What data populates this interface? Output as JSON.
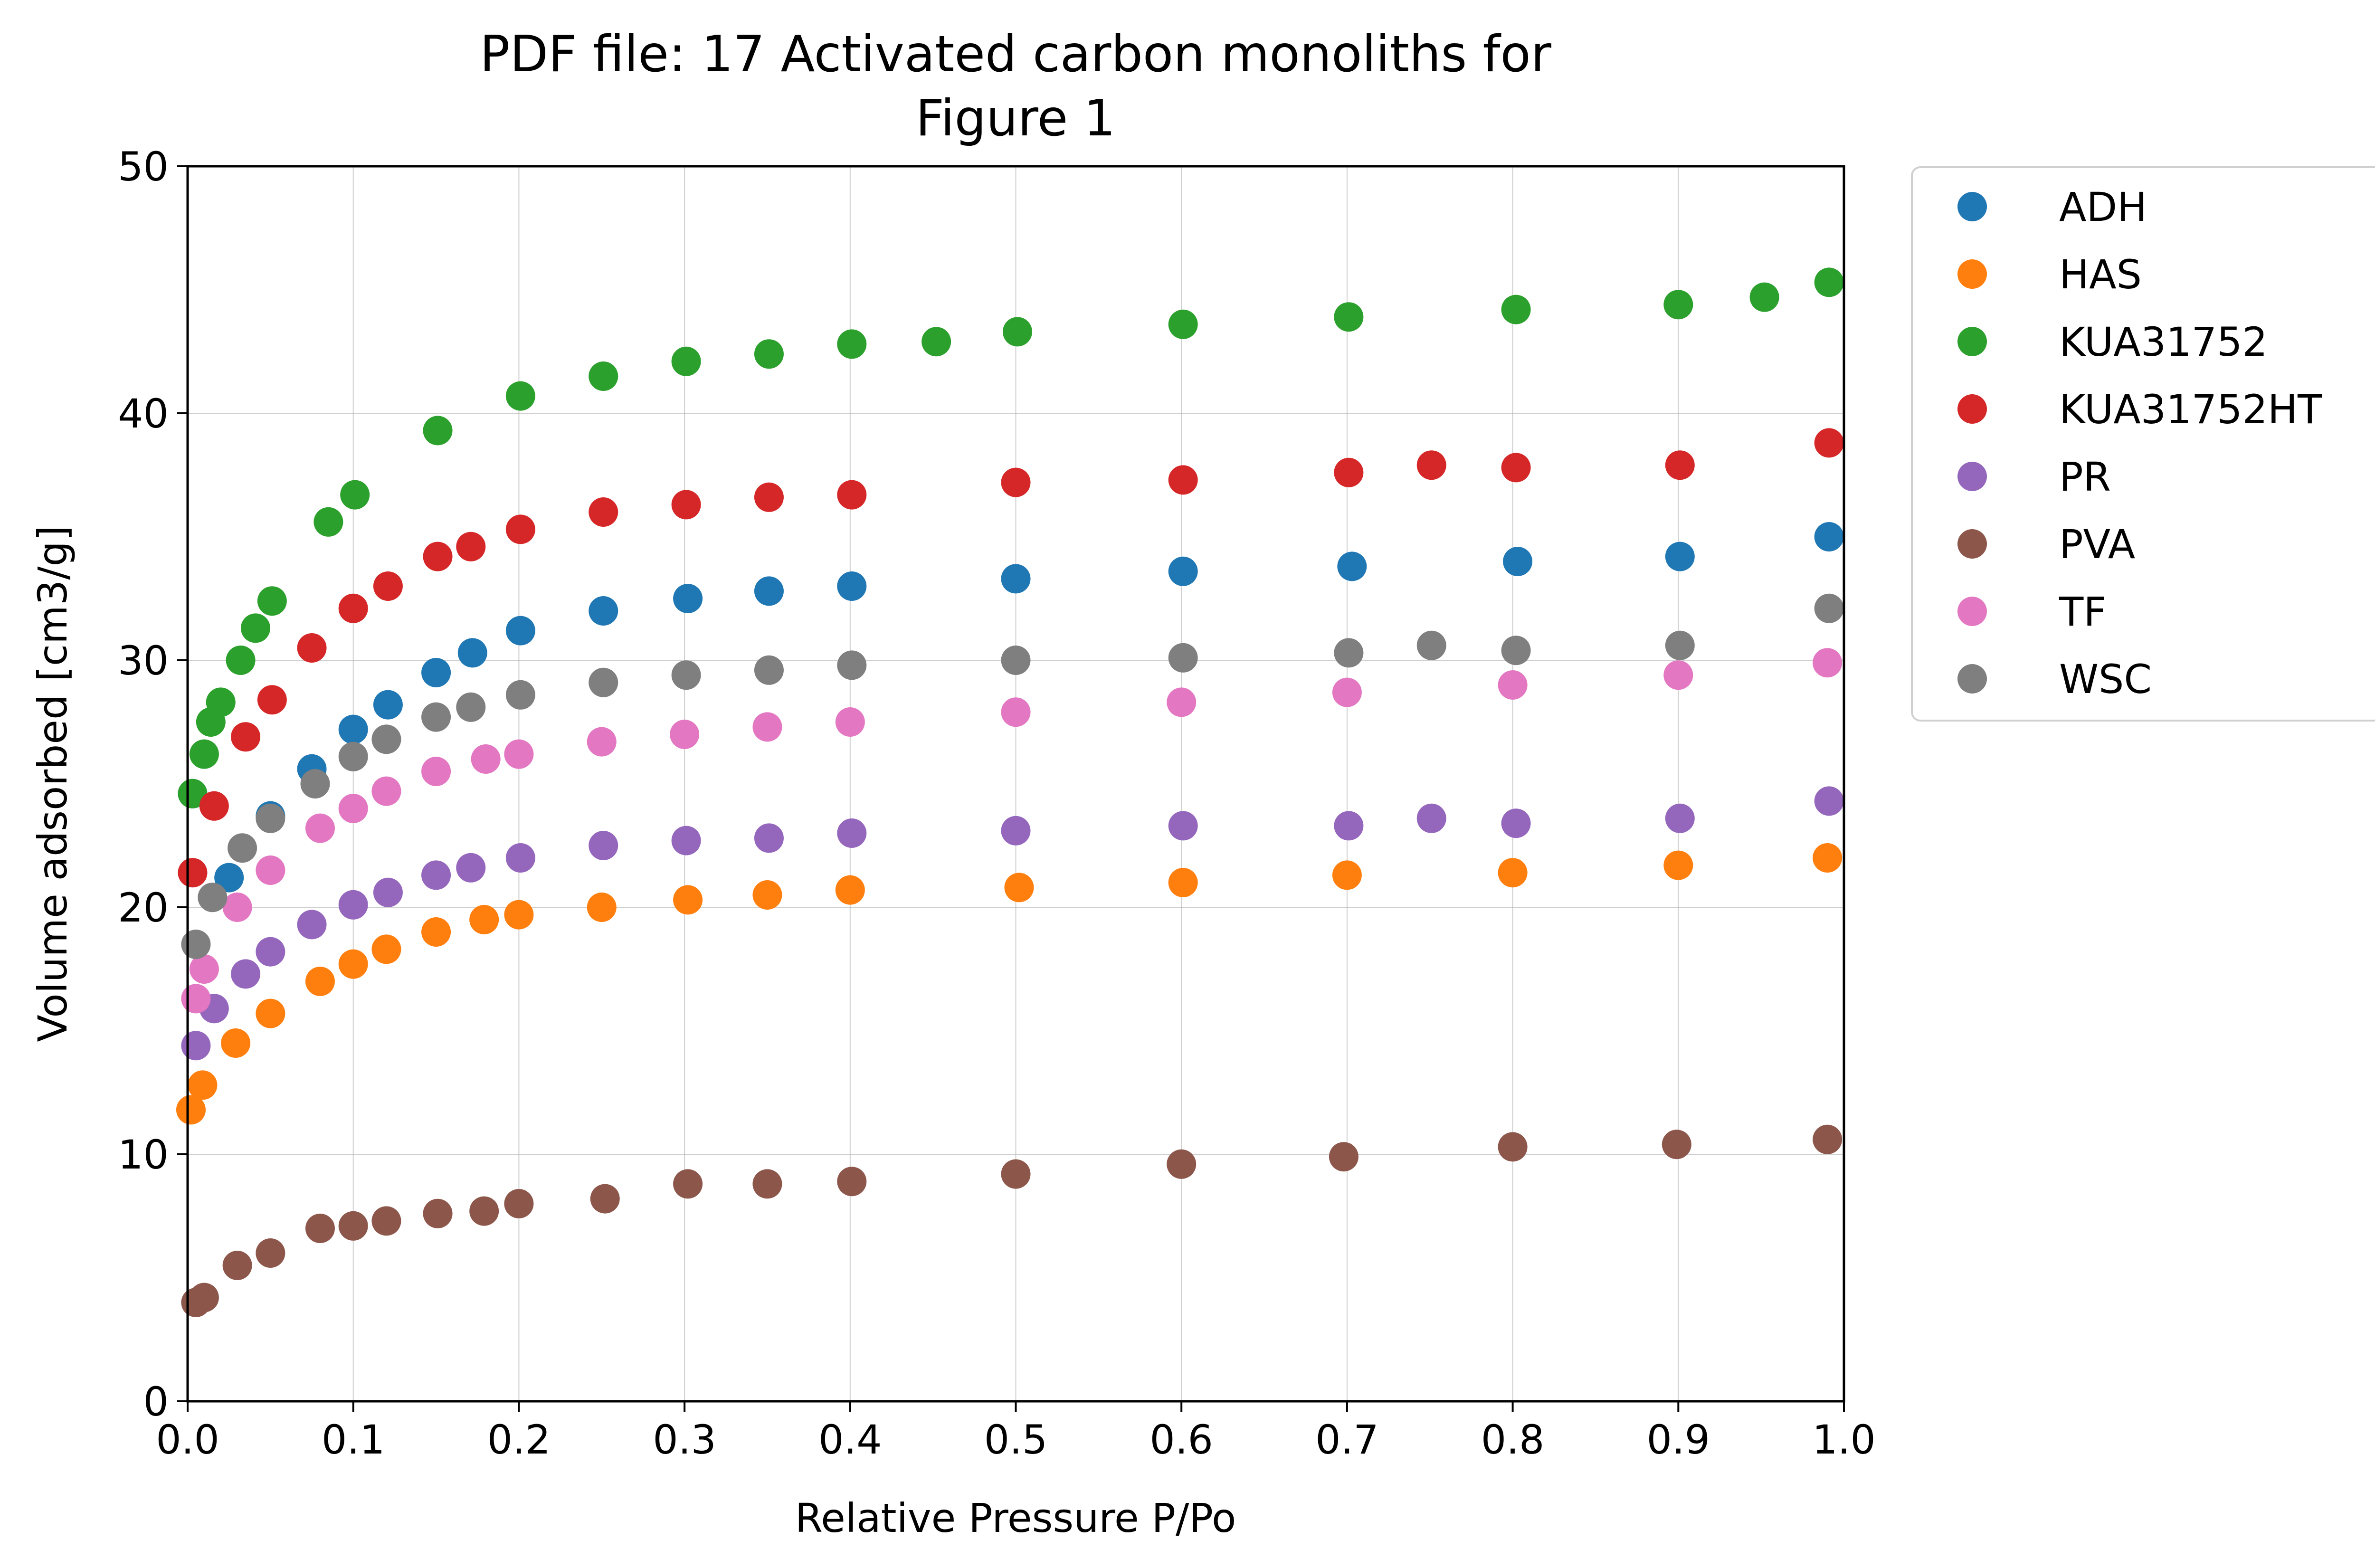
{
  "chart_data": {
    "type": "scatter",
    "title": "PDF file: 17 Activated carbon monoliths for\nFigure 1",
    "xlabel": "Relative Pressure P/Po",
    "ylabel": "Volume adsorbed [cm3/g]",
    "xlim": [
      0,
      1
    ],
    "ylim": [
      0,
      50
    ],
    "xticks": [
      0,
      0.1,
      0.2,
      0.3,
      0.4,
      0.5,
      0.6,
      0.7,
      0.8,
      0.9,
      1.0
    ],
    "xtick_labels": [
      "0.0",
      "0.1",
      "0.2",
      "0.3",
      "0.4",
      "0.5",
      "0.6",
      "0.7",
      "0.8",
      "0.9",
      "1.0"
    ],
    "yticks": [
      0,
      10,
      20,
      30,
      40,
      50
    ],
    "ytick_labels": [
      "0",
      "10",
      "20",
      "30",
      "40",
      "50"
    ],
    "grid": true,
    "legend_position": "outside-right",
    "series": [
      {
        "name": "ADH",
        "color": "#1f77b4",
        "points": [
          [
            0.003,
            24.6
          ],
          [
            0.025,
            21.2
          ],
          [
            0.05,
            23.7
          ],
          [
            0.075,
            25.6
          ],
          [
            0.1,
            27.2
          ],
          [
            0.121,
            28.2
          ],
          [
            0.15,
            29.5
          ],
          [
            0.172,
            30.3
          ],
          [
            0.201,
            31.2
          ],
          [
            0.251,
            32.0
          ],
          [
            0.302,
            32.5
          ],
          [
            0.351,
            32.8
          ],
          [
            0.401,
            33.0
          ],
          [
            0.5,
            33.3
          ],
          [
            0.601,
            33.6
          ],
          [
            0.703,
            33.8
          ],
          [
            0.803,
            34.0
          ],
          [
            0.901,
            34.2
          ],
          [
            0.991,
            35.0
          ]
        ]
      },
      {
        "name": "HAS",
        "color": "#ff7f0e",
        "points": [
          [
            0.002,
            11.8
          ],
          [
            0.009,
            12.8
          ],
          [
            0.029,
            14.5
          ],
          [
            0.05,
            15.7
          ],
          [
            0.08,
            17.0
          ],
          [
            0.1,
            17.7
          ],
          [
            0.12,
            18.3
          ],
          [
            0.15,
            19.0
          ],
          [
            0.179,
            19.5
          ],
          [
            0.2,
            19.7
          ],
          [
            0.25,
            20.0
          ],
          [
            0.302,
            20.3
          ],
          [
            0.35,
            20.5
          ],
          [
            0.4,
            20.7
          ],
          [
            0.502,
            20.8
          ],
          [
            0.601,
            21.0
          ],
          [
            0.7,
            21.3
          ],
          [
            0.8,
            21.4
          ],
          [
            0.9,
            21.7
          ],
          [
            0.99,
            22.0
          ]
        ]
      },
      {
        "name": "KUA31752",
        "color": "#2ca02c",
        "points": [
          [
            0.003,
            24.6
          ],
          [
            0.01,
            26.2
          ],
          [
            0.014,
            27.5
          ],
          [
            0.02,
            28.3
          ],
          [
            0.032,
            30.0
          ],
          [
            0.041,
            31.3
          ],
          [
            0.051,
            32.4
          ],
          [
            0.085,
            35.6
          ],
          [
            0.101,
            36.7
          ],
          [
            0.151,
            39.3
          ],
          [
            0.201,
            40.7
          ],
          [
            0.251,
            41.5
          ],
          [
            0.301,
            42.1
          ],
          [
            0.351,
            42.4
          ],
          [
            0.401,
            42.8
          ],
          [
            0.452,
            42.9
          ],
          [
            0.501,
            43.3
          ],
          [
            0.601,
            43.6
          ],
          [
            0.701,
            43.9
          ],
          [
            0.802,
            44.2
          ],
          [
            0.9,
            44.4
          ],
          [
            0.952,
            44.7
          ],
          [
            0.991,
            45.3
          ]
        ]
      },
      {
        "name": "KUA31752HT",
        "color": "#d62728",
        "points": [
          [
            0.003,
            21.4
          ],
          [
            0.016,
            24.1
          ],
          [
            0.035,
            26.9
          ],
          [
            0.051,
            28.4
          ],
          [
            0.075,
            30.5
          ],
          [
            0.1,
            32.1
          ],
          [
            0.121,
            33.0
          ],
          [
            0.151,
            34.2
          ],
          [
            0.171,
            34.6
          ],
          [
            0.201,
            35.3
          ],
          [
            0.251,
            36.0
          ],
          [
            0.301,
            36.3
          ],
          [
            0.351,
            36.6
          ],
          [
            0.401,
            36.7
          ],
          [
            0.5,
            37.2
          ],
          [
            0.601,
            37.3
          ],
          [
            0.701,
            37.6
          ],
          [
            0.751,
            37.9
          ],
          [
            0.802,
            37.8
          ],
          [
            0.901,
            37.9
          ],
          [
            0.991,
            38.8
          ]
        ]
      },
      {
        "name": "PR",
        "color": "#9467bd",
        "points": [
          [
            0.005,
            14.4
          ],
          [
            0.016,
            15.9
          ],
          [
            0.035,
            17.3
          ],
          [
            0.05,
            18.2
          ],
          [
            0.075,
            19.3
          ],
          [
            0.1,
            20.1
          ],
          [
            0.121,
            20.6
          ],
          [
            0.15,
            21.3
          ],
          [
            0.171,
            21.6
          ],
          [
            0.201,
            22.0
          ],
          [
            0.251,
            22.5
          ],
          [
            0.301,
            22.7
          ],
          [
            0.351,
            22.8
          ],
          [
            0.401,
            23.0
          ],
          [
            0.5,
            23.1
          ],
          [
            0.601,
            23.3
          ],
          [
            0.701,
            23.3
          ],
          [
            0.751,
            23.6
          ],
          [
            0.802,
            23.4
          ],
          [
            0.901,
            23.6
          ],
          [
            0.991,
            24.3
          ]
        ]
      },
      {
        "name": "PVA",
        "color": "#8c564b",
        "points": [
          [
            0.005,
            4.0
          ],
          [
            0.01,
            4.2
          ],
          [
            0.03,
            5.5
          ],
          [
            0.05,
            6.0
          ],
          [
            0.08,
            7.0
          ],
          [
            0.1,
            7.1
          ],
          [
            0.12,
            7.3
          ],
          [
            0.151,
            7.6
          ],
          [
            0.179,
            7.7
          ],
          [
            0.2,
            8.0
          ],
          [
            0.252,
            8.2
          ],
          [
            0.302,
            8.8
          ],
          [
            0.35,
            8.8
          ],
          [
            0.401,
            8.9
          ],
          [
            0.5,
            9.2
          ],
          [
            0.6,
            9.6
          ],
          [
            0.698,
            9.9
          ],
          [
            0.8,
            10.3
          ],
          [
            0.899,
            10.4
          ],
          [
            0.99,
            10.6
          ]
        ]
      },
      {
        "name": "TF",
        "color": "#e377c2",
        "points": [
          [
            0.005,
            16.3
          ],
          [
            0.01,
            17.5
          ],
          [
            0.03,
            20.0
          ],
          [
            0.05,
            21.5
          ],
          [
            0.08,
            23.2
          ],
          [
            0.1,
            24.0
          ],
          [
            0.12,
            24.7
          ],
          [
            0.15,
            25.5
          ],
          [
            0.18,
            26.0
          ],
          [
            0.2,
            26.2
          ],
          [
            0.25,
            26.7
          ],
          [
            0.3,
            27.0
          ],
          [
            0.35,
            27.3
          ],
          [
            0.4,
            27.5
          ],
          [
            0.5,
            27.9
          ],
          [
            0.6,
            28.3
          ],
          [
            0.7,
            28.7
          ],
          [
            0.8,
            29.0
          ],
          [
            0.9,
            29.4
          ],
          [
            0.99,
            29.9
          ]
        ]
      },
      {
        "name": "WSC",
        "color": "#7f7f7f",
        "points": [
          [
            0.005,
            18.5
          ],
          [
            0.015,
            20.4
          ],
          [
            0.033,
            22.4
          ],
          [
            0.05,
            23.6
          ],
          [
            0.077,
            25.0
          ],
          [
            0.1,
            26.1
          ],
          [
            0.12,
            26.8
          ],
          [
            0.15,
            27.7
          ],
          [
            0.171,
            28.1
          ],
          [
            0.201,
            28.6
          ],
          [
            0.251,
            29.1
          ],
          [
            0.301,
            29.4
          ],
          [
            0.351,
            29.6
          ],
          [
            0.401,
            29.8
          ],
          [
            0.5,
            30.0
          ],
          [
            0.601,
            30.1
          ],
          [
            0.701,
            30.3
          ],
          [
            0.751,
            30.6
          ],
          [
            0.802,
            30.4
          ],
          [
            0.901,
            30.6
          ],
          [
            0.991,
            32.1
          ]
        ]
      }
    ]
  }
}
